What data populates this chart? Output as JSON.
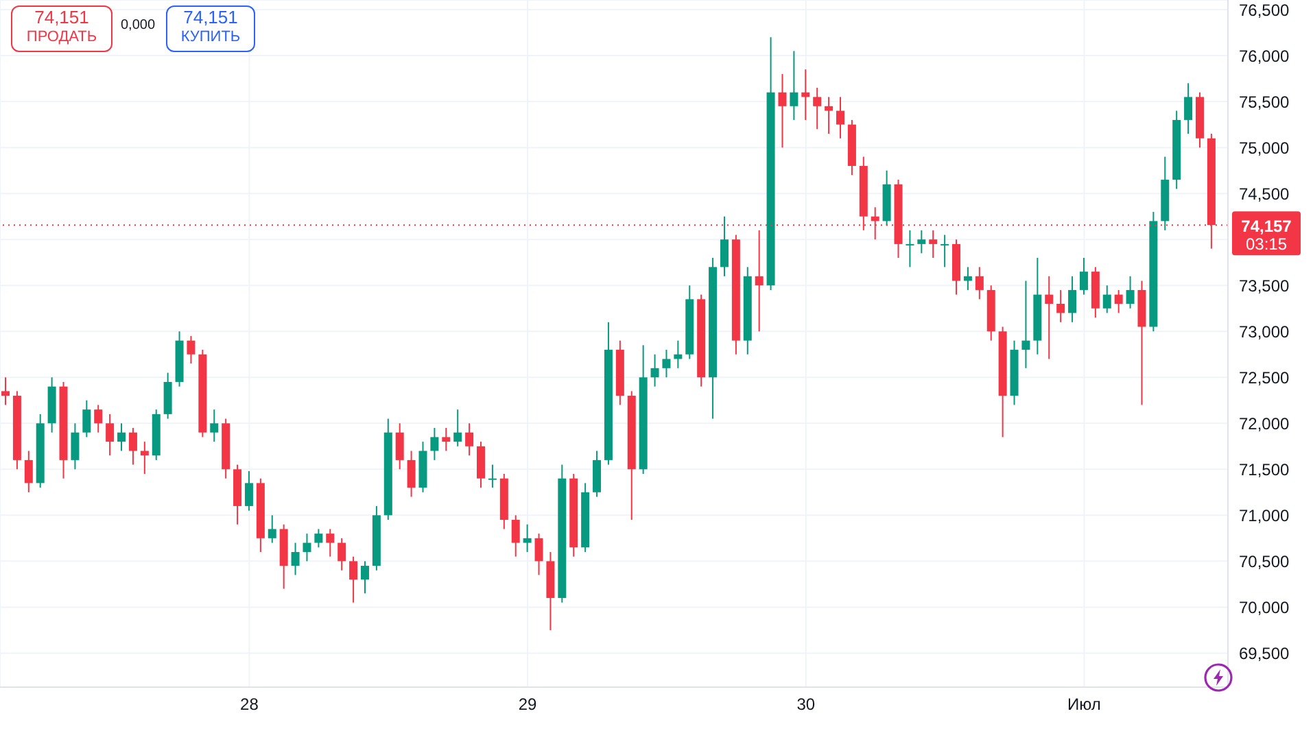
{
  "chart_data": {
    "type": "candlestick",
    "x": [
      "--06-27T03:00",
      "--06-27T04:00",
      "--06-27T05:00",
      "--06-27T06:00",
      "--06-27T07:00",
      "--06-27T08:00",
      "--06-27T09:00",
      "--06-27T10:00",
      "--06-27T11:00",
      "--06-27T12:00",
      "--06-27T13:00",
      "--06-27T14:00",
      "--06-27T15:00",
      "--06-27T16:00",
      "--06-27T17:00",
      "--06-27T18:00",
      "--06-27T19:00",
      "--06-27T20:00",
      "--06-27T21:00",
      "--06-27T22:00",
      "--06-27T23:00",
      "--06-28T00:00",
      "--06-28T01:00",
      "--06-28T02:00",
      "--06-28T03:00",
      "--06-28T04:00",
      "--06-28T05:00",
      "--06-28T06:00",
      "--06-28T07:00",
      "--06-28T08:00",
      "--06-28T09:00",
      "--06-28T10:00",
      "--06-28T11:00",
      "--06-28T12:00",
      "--06-28T13:00",
      "--06-28T14:00",
      "--06-28T15:00",
      "--06-28T16:00",
      "--06-28T17:00",
      "--06-28T18:00",
      "--06-28T19:00",
      "--06-28T20:00",
      "--06-28T21:00",
      "--06-28T22:00",
      "--06-28T23:00",
      "--06-29T00:00",
      "--06-29T01:00",
      "--06-29T02:00",
      "--06-29T03:00",
      "--06-29T04:00",
      "--06-29T05:00",
      "--06-29T06:00",
      "--06-29T07:00",
      "--06-29T08:00",
      "--06-29T09:00",
      "--06-29T10:00",
      "--06-29T11:00",
      "--06-29T12:00",
      "--06-29T13:00",
      "--06-29T14:00",
      "--06-29T15:00",
      "--06-29T16:00",
      "--06-29T17:00",
      "--06-29T18:00",
      "--06-29T19:00",
      "--06-29T20:00",
      "--06-29T21:00",
      "--06-29T22:00",
      "--06-29T23:00",
      "--06-30T00:00",
      "--06-30T01:00",
      "--06-30T02:00",
      "--06-30T03:00",
      "--06-30T04:00",
      "--06-30T05:00",
      "--06-30T06:00",
      "--06-30T07:00",
      "--06-30T08:00",
      "--06-30T09:00",
      "--06-30T10:00",
      "--06-30T11:00",
      "--06-30T12:00",
      "--06-30T13:00",
      "--06-30T14:00",
      "--06-30T15:00",
      "--06-30T16:00",
      "--06-30T17:00",
      "--06-30T18:00",
      "--06-30T19:00",
      "--06-30T20:00",
      "--06-30T21:00",
      "--06-30T22:00",
      "--06-30T23:00",
      "--07-01T00:00",
      "--07-01T01:00",
      "--07-01T02:00",
      "--07-01T03:00",
      "--07-01T04:00",
      "--07-01T05:00",
      "--07-01T06:00",
      "--07-01T07:00",
      "--07-01T08:00",
      "--07-01T09:00",
      "--07-01T10:00",
      "--07-01T11:00"
    ],
    "ohlc": [
      [
        72350,
        72500,
        72200,
        72300
      ],
      [
        72300,
        72350,
        71500,
        71600
      ],
      [
        71600,
        71700,
        71250,
        71350
      ],
      [
        71350,
        72100,
        71300,
        72000
      ],
      [
        72000,
        72500,
        71900,
        72400
      ],
      [
        72400,
        72450,
        71400,
        71600
      ],
      [
        71600,
        72000,
        71500,
        71900
      ],
      [
        71900,
        72250,
        71850,
        72150
      ],
      [
        72150,
        72200,
        71900,
        72000
      ],
      [
        72000,
        72100,
        71650,
        71800
      ],
      [
        71800,
        72000,
        71700,
        71900
      ],
      [
        71900,
        71950,
        71550,
        71700
      ],
      [
        71700,
        71800,
        71450,
        71650
      ],
      [
        71650,
        72150,
        71600,
        72100
      ],
      [
        72100,
        72550,
        72050,
        72450
      ],
      [
        72450,
        73000,
        72400,
        72900
      ],
      [
        72900,
        72950,
        72650,
        72750
      ],
      [
        72750,
        72800,
        71850,
        71900
      ],
      [
        71900,
        72150,
        71800,
        72000
      ],
      [
        72000,
        72050,
        71400,
        71500
      ],
      [
        71500,
        71550,
        70900,
        71100
      ],
      [
        71100,
        71480,
        71050,
        71350
      ],
      [
        71350,
        71400,
        70600,
        70750
      ],
      [
        70750,
        71000,
        70700,
        70850
      ],
      [
        70850,
        70900,
        70200,
        70450
      ],
      [
        70450,
        70700,
        70350,
        70600
      ],
      [
        70600,
        70800,
        70500,
        70700
      ],
      [
        70700,
        70850,
        70650,
        70800
      ],
      [
        70800,
        70850,
        70550,
        70700
      ],
      [
        70700,
        70750,
        70400,
        70500
      ],
      [
        70500,
        70550,
        70050,
        70300
      ],
      [
        70300,
        70500,
        70150,
        70450
      ],
      [
        70450,
        71100,
        70400,
        71000
      ],
      [
        71000,
        72050,
        70950,
        71900
      ],
      [
        71900,
        72000,
        71500,
        71600
      ],
      [
        71600,
        71700,
        71200,
        71300
      ],
      [
        71300,
        71800,
        71250,
        71700
      ],
      [
        71700,
        71950,
        71600,
        71850
      ],
      [
        71850,
        71950,
        71700,
        71800
      ],
      [
        71800,
        72150,
        71750,
        71900
      ],
      [
        71900,
        72000,
        71650,
        71750
      ],
      [
        71750,
        71800,
        71300,
        71400
      ],
      [
        71400,
        71550,
        71300,
        71400
      ],
      [
        71400,
        71450,
        70850,
        70950
      ],
      [
        70950,
        71000,
        70550,
        70700
      ],
      [
        70700,
        70900,
        70600,
        70750
      ],
      [
        70750,
        70800,
        70350,
        70500
      ],
      [
        70500,
        70600,
        69750,
        70100
      ],
      [
        70100,
        71550,
        70050,
        71400
      ],
      [
        71400,
        71450,
        70550,
        70650
      ],
      [
        70650,
        71350,
        70600,
        71250
      ],
      [
        71250,
        71700,
        71200,
        71600
      ],
      [
        71600,
        73100,
        71550,
        72800
      ],
      [
        72800,
        72900,
        72200,
        72300
      ],
      [
        72300,
        72350,
        70950,
        71500
      ],
      [
        71500,
        72850,
        71450,
        72500
      ],
      [
        72500,
        72750,
        72400,
        72600
      ],
      [
        72600,
        72800,
        72500,
        72700
      ],
      [
        72700,
        72900,
        72600,
        72750
      ],
      [
        72750,
        73500,
        72700,
        73350
      ],
      [
        73350,
        73400,
        72400,
        72500
      ],
      [
        72500,
        73800,
        72050,
        73700
      ],
      [
        73700,
        74250,
        73600,
        74000
      ],
      [
        74000,
        74050,
        72750,
        72900
      ],
      [
        72900,
        73700,
        72750,
        73600
      ],
      [
        73600,
        74100,
        73000,
        73500
      ],
      [
        73500,
        76200,
        73450,
        75600
      ],
      [
        75600,
        75800,
        75000,
        75450
      ],
      [
        75450,
        76050,
        75300,
        75600
      ],
      [
        75600,
        75850,
        75300,
        75550
      ],
      [
        75550,
        75650,
        75200,
        75450
      ],
      [
        75450,
        75550,
        75150,
        75400
      ],
      [
        75400,
        75550,
        75100,
        75250
      ],
      [
        75250,
        75300,
        74700,
        74800
      ],
      [
        74800,
        74900,
        74100,
        74250
      ],
      [
        74250,
        74350,
        74000,
        74200
      ],
      [
        74200,
        74750,
        74150,
        74600
      ],
      [
        74600,
        74650,
        73800,
        73950
      ],
      [
        73950,
        74100,
        73700,
        73950
      ],
      [
        73950,
        74100,
        73850,
        74000
      ],
      [
        74000,
        74100,
        73800,
        73950
      ],
      [
        73950,
        74050,
        73700,
        73950
      ],
      [
        73950,
        74000,
        73400,
        73550
      ],
      [
        73550,
        73700,
        73450,
        73600
      ],
      [
        73600,
        73700,
        73350,
        73450
      ],
      [
        73450,
        73500,
        72900,
        73000
      ],
      [
        73000,
        73050,
        71850,
        72300
      ],
      [
        72300,
        72900,
        72200,
        72800
      ],
      [
        72800,
        73550,
        72600,
        72900
      ],
      [
        72900,
        73800,
        72750,
        73400
      ],
      [
        73400,
        73600,
        72700,
        73300
      ],
      [
        73300,
        73450,
        73100,
        73200
      ],
      [
        73200,
        73600,
        73100,
        73450
      ],
      [
        73450,
        73800,
        73400,
        73650
      ],
      [
        73650,
        73700,
        73150,
        73250
      ],
      [
        73250,
        73500,
        73200,
        73400
      ],
      [
        73400,
        73450,
        73200,
        73300
      ],
      [
        73300,
        73600,
        73250,
        73450
      ],
      [
        73450,
        73550,
        72200,
        73050
      ],
      [
        73050,
        74300,
        73000,
        74200
      ],
      [
        74200,
        74900,
        74100,
        74650
      ],
      [
        74650,
        75400,
        74550,
        75300
      ],
      [
        75300,
        75700,
        75150,
        75550
      ],
      [
        75550,
        75600,
        75000,
        75100
      ],
      [
        75100,
        75150,
        73900,
        74157
      ]
    ],
    "xlim": [
      "--06-27T02:30",
      "--07-01T12:24"
    ],
    "xticks": [
      {
        "value": "--06-28",
        "label": "28"
      },
      {
        "value": "--06-29",
        "label": "29"
      },
      {
        "value": "--06-30",
        "label": "30"
      },
      {
        "value": "--07-01",
        "label": "Июл"
      }
    ],
    "ylim": [
      69130,
      76605
    ],
    "yticks": [
      {
        "value": 69500,
        "label": "69,500"
      },
      {
        "value": 70000,
        "label": "70,000"
      },
      {
        "value": 70500,
        "label": "70,500"
      },
      {
        "value": 71000,
        "label": "71,000"
      },
      {
        "value": 71500,
        "label": "71,500"
      },
      {
        "value": 72000,
        "label": "72,000"
      },
      {
        "value": 72500,
        "label": "72,500"
      },
      {
        "value": 73000,
        "label": "73,000"
      },
      {
        "value": 73500,
        "label": "73,500"
      },
      {
        "value": 74000,
        "label": null
      },
      {
        "value": 74500,
        "label": "74,500"
      },
      {
        "value": 75000,
        "label": "75,000"
      },
      {
        "value": 75500,
        "label": "75,500"
      },
      {
        "value": 76000,
        "label": "76,000"
      },
      {
        "value": 76500,
        "label": "76,500"
      }
    ],
    "ref_lines": [
      {
        "axis": "y",
        "value": 74157,
        "label": "74,157",
        "color": "#f23645",
        "line_style": "dotted"
      }
    ],
    "annotations": [
      "03:15",
      "74,151",
      "ПРОДАТЬ",
      "0,000",
      "74,151",
      "КУПИТЬ"
    ],
    "grid": true
  }
}
